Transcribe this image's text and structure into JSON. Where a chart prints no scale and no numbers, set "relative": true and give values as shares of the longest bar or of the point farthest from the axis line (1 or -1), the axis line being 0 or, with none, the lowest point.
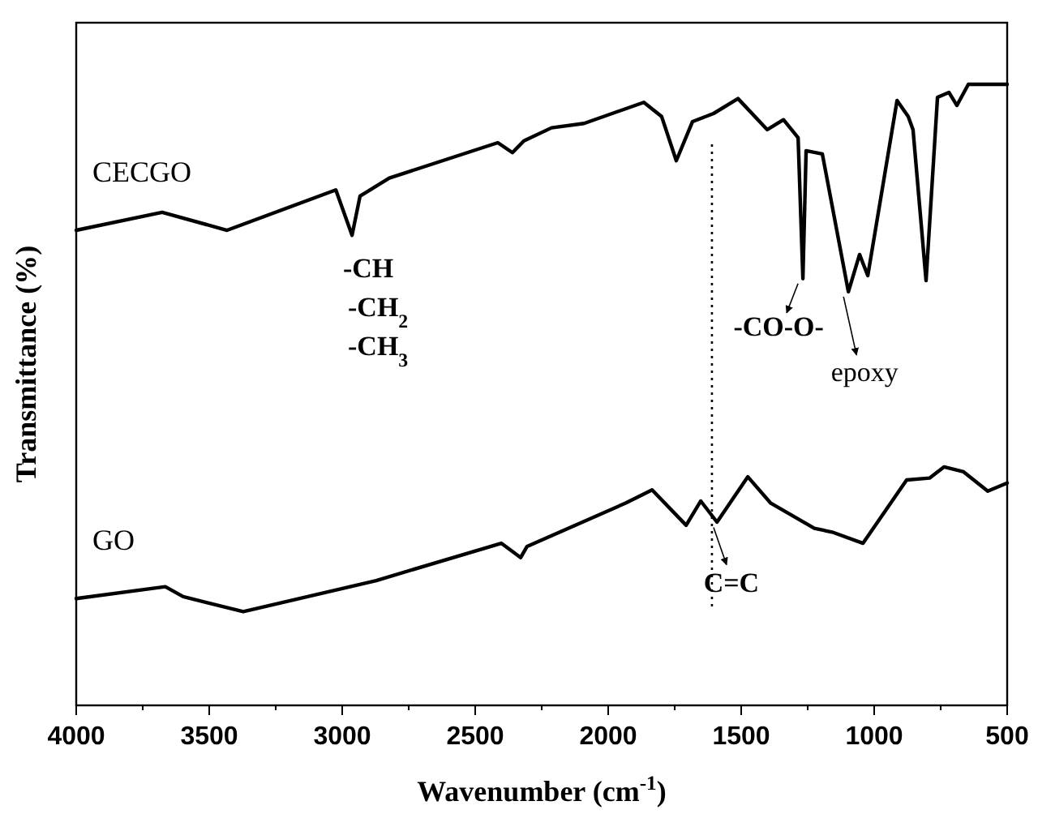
{
  "chart_data": {
    "type": "line",
    "relative": true,
    "xlabel": "Wavenumber (cm$^{-1}$)",
    "ylabel": "Transmittance (%)",
    "tick_labels": "x",
    "grid": false,
    "line_style": "solid",
    "xlim": [
      4000,
      500
    ],
    "xticks": [
      4000,
      {
        "value": 3750,
        "label": null
      },
      3500,
      {
        "value": 3250,
        "label": null
      },
      3000,
      {
        "value": 2750,
        "label": null
      },
      2500,
      {
        "value": 2250,
        "label": null
      },
      2000,
      {
        "value": 1750,
        "label": null
      },
      1500,
      {
        "value": 1250,
        "label": null
      },
      1000,
      {
        "value": 750,
        "label": null
      },
      500
    ],
    "series": [
      {
        "name": "CECGO",
        "color": "#000000",
        "x": [
          4000,
          3677,
          3433,
          3024,
          2963,
          2933,
          2823,
          2415,
          2360,
          2317,
          2213,
          2091,
          1866,
          1799,
          1744,
          1683,
          1604,
          1512,
          1402,
          1341,
          1286,
          1268,
          1256,
          1195,
          1097,
          1055,
          1024,
          914,
          872,
          854,
          805,
          762,
          719,
          689,
          646,
          500
        ],
        "values": [
          0.765,
          0.794,
          0.765,
          0.83,
          0.757,
          0.82,
          0.849,
          0.906,
          0.89,
          0.909,
          0.93,
          0.937,
          0.971,
          0.948,
          0.877,
          0.94,
          0.953,
          0.977,
          0.927,
          0.943,
          0.914,
          0.687,
          0.893,
          0.888,
          0.666,
          0.726,
          0.692,
          0.974,
          0.948,
          0.927,
          0.684,
          0.979,
          0.987,
          0.966,
          1,
          1
        ]
      },
      {
        "name": "GO",
        "color": "#000000",
        "x": [
          4000,
          3665,
          3598,
          3372,
          2872,
          2402,
          2329,
          2305,
          1933,
          1835,
          1707,
          1652,
          1591,
          1475,
          1390,
          1225,
          1158,
          1042,
          878,
          792,
          737,
          664,
          573,
          500
        ],
        "values": [
          0.172,
          0.191,
          0.175,
          0.151,
          0.201,
          0.261,
          0.238,
          0.256,
          0.326,
          0.347,
          0.29,
          0.329,
          0.295,
          0.368,
          0.326,
          0.285,
          0.279,
          0.261,
          0.363,
          0.366,
          0.384,
          0.376,
          0.345,
          0.358
        ]
      }
    ],
    "ref_lines": [
      {
        "axis": "x",
        "value": 1610,
        "line_style": "dotted",
        "color": "#000000"
      }
    ],
    "annotations": [
      {
        "text": "-CH",
        "x": 2963,
        "y": 0.757
      },
      "-CH$_{2}$",
      "-CH$_{3}$",
      {
        "text": "-CO-O-",
        "x": 1268,
        "y": 0.687
      },
      {
        "text": "epoxy",
        "x": 1097,
        "y": 0.666
      },
      {
        "text": "C=C",
        "x": 1610,
        "y": 0.297
      }
    ]
  }
}
